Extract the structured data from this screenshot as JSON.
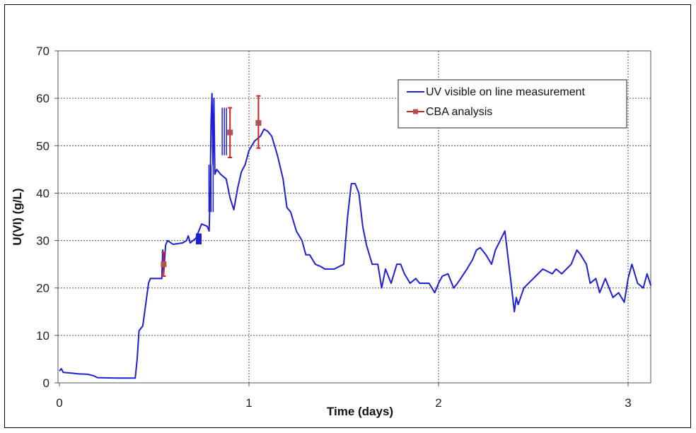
{
  "chart_data": {
    "type": "line",
    "title": "",
    "xlabel": "Time (days)",
    "ylabel": "U(VI) (g/L)",
    "xlim": [
      0,
      3.12
    ],
    "ylim": [
      0,
      70
    ],
    "x_ticks": [
      0,
      1,
      2,
      3
    ],
    "y_ticks": [
      0,
      10,
      20,
      30,
      40,
      50,
      60,
      70
    ],
    "grid": true,
    "legend_position": "top-right",
    "series": [
      {
        "name": "UV visible on line measurement",
        "color": "#1f1fd6",
        "style": "line",
        "x": [
          0,
          0.01,
          0.02,
          0.05,
          0.1,
          0.15,
          0.18,
          0.2,
          0.3,
          0.4,
          0.41,
          0.42,
          0.44,
          0.45,
          0.47,
          0.48,
          0.5,
          0.52,
          0.54,
          0.545,
          0.55,
          0.56,
          0.57,
          0.6,
          0.65,
          0.67,
          0.68,
          0.69,
          0.72,
          0.75,
          0.78,
          0.79,
          0.795,
          0.8,
          0.805,
          0.81,
          0.815,
          0.82,
          0.83,
          0.85,
          0.88,
          0.9,
          0.92,
          0.94,
          0.96,
          0.98,
          1.0,
          1.03,
          1.06,
          1.08,
          1.1,
          1.12,
          1.15,
          1.18,
          1.2,
          1.22,
          1.25,
          1.28,
          1.3,
          1.32,
          1.35,
          1.38,
          1.4,
          1.45,
          1.5,
          1.52,
          1.54,
          1.56,
          1.58,
          1.6,
          1.62,
          1.65,
          1.68,
          1.7,
          1.72,
          1.75,
          1.78,
          1.8,
          1.82,
          1.85,
          1.88,
          1.9,
          1.95,
          1.98,
          2.0,
          2.02,
          2.05,
          2.08,
          2.1,
          2.15,
          2.18,
          2.2,
          2.22,
          2.25,
          2.28,
          2.3,
          2.35,
          2.38,
          2.4,
          2.41,
          2.42,
          2.45,
          2.5,
          2.55,
          2.6,
          2.62,
          2.65,
          2.7,
          2.73,
          2.75,
          2.78,
          2.8,
          2.83,
          2.85,
          2.88,
          2.9,
          2.92,
          2.95,
          2.98,
          3.0,
          3.02,
          3.05,
          3.08,
          3.1,
          3.12
        ],
        "y": [
          2.5,
          3,
          2.2,
          2.1,
          1.9,
          1.8,
          1.5,
          1.1,
          1.0,
          1.0,
          5,
          11,
          12,
          15,
          21,
          22,
          22,
          22,
          22,
          28,
          23,
          29,
          30,
          29.2,
          29.5,
          30,
          31,
          29.5,
          30.5,
          33.5,
          33,
          32,
          40,
          55,
          61,
          46,
          60,
          44,
          45,
          44,
          43,
          39,
          36.5,
          41,
          44.5,
          46,
          49,
          51,
          52,
          53.5,
          53,
          52,
          48,
          43,
          37,
          36,
          32,
          30,
          27,
          27,
          25,
          24.5,
          24,
          24,
          25,
          35,
          42,
          42,
          40,
          33,
          29,
          25,
          25,
          20,
          24,
          21,
          25,
          25,
          23,
          21,
          22,
          21,
          21,
          19,
          21,
          22.5,
          23,
          20,
          21,
          24,
          26,
          28,
          28.5,
          27,
          25,
          28,
          32,
          22,
          15,
          18,
          16.5,
          20,
          22,
          24,
          23,
          24,
          23,
          25,
          28,
          27,
          25,
          21,
          22,
          19,
          22,
          20,
          18,
          19,
          17,
          22,
          25,
          21,
          20,
          23,
          20.5
        ],
        "markers": [
          {
            "x": 0.75,
            "y": 31.5,
            "type": "block"
          },
          {
            "x": 0.8,
            "y": 46,
            "type": "spike"
          },
          {
            "x": 0.87,
            "y": 58,
            "type": "spike"
          }
        ]
      },
      {
        "name": "CBA analysis",
        "color": "#cc2222",
        "style": "marker",
        "x": [
          0.55,
          0.9,
          1.05
        ],
        "y": [
          25,
          52.8,
          54.8
        ],
        "y_low": [
          22.5,
          47.5,
          49.5
        ],
        "y_high": [
          27.5,
          58,
          60.5
        ]
      }
    ]
  }
}
